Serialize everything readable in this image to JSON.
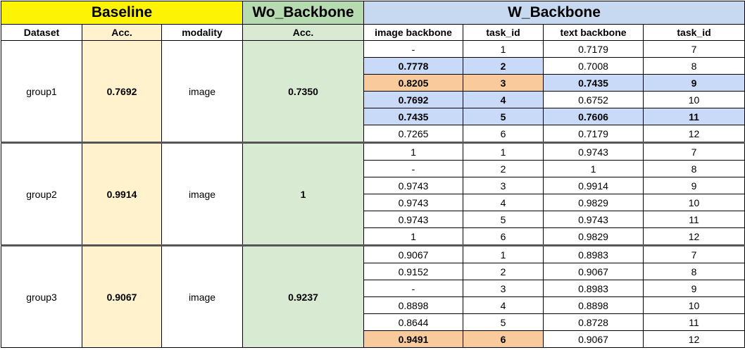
{
  "headers": {
    "baseline": "Baseline",
    "wo_backbone": "Wo_Backbone",
    "w_backbone": "W_Backbone",
    "dataset": "Dataset",
    "acc": "Acc.",
    "modality": "modality",
    "wo_acc": "Acc.",
    "image_backbone": "image backbone",
    "task_id_1": "task_id",
    "text_backbone": "text backbone",
    "task_id_2": "task_id"
  },
  "colors": {
    "baseline_header": "#fdf305",
    "wo_backbone_header": "#b7dbb0",
    "w_backbone_header": "#c6d9f1",
    "baseline_column": "#fff2cc",
    "wo_backbone_column": "#d9ead3",
    "highlight_blue": "#c9daf8",
    "highlight_orange": "#f9cb9c"
  },
  "groups": [
    {
      "dataset": "group1",
      "acc": "0.7692",
      "modality": "image",
      "wo_acc": "0.7350",
      "rows": [
        {
          "img": "-",
          "tid1": "1",
          "txt": "0.7179",
          "tid2": "7"
        },
        {
          "img": "0.7778",
          "tid1": "2",
          "txt": "0.7008",
          "tid2": "8"
        },
        {
          "img": "0.8205",
          "tid1": "3",
          "txt": "0.7435",
          "tid2": "9"
        },
        {
          "img": "0.7692",
          "tid1": "4",
          "txt": "0.6752",
          "tid2": "10"
        },
        {
          "img": "0.7435",
          "tid1": "5",
          "txt": "0.7606",
          "tid2": "11"
        },
        {
          "img": "0.7265",
          "tid1": "6",
          "txt": "0.7179",
          "tid2": "12"
        }
      ]
    },
    {
      "dataset": "group2",
      "acc": "0.9914",
      "modality": "image",
      "wo_acc": "1",
      "rows": [
        {
          "img": "1",
          "tid1": "1",
          "txt": "0.9743",
          "tid2": "7"
        },
        {
          "img": "-",
          "tid1": "2",
          "txt": "1",
          "tid2": "8"
        },
        {
          "img": "0.9743",
          "tid1": "3",
          "txt": "0.9914",
          "tid2": "9"
        },
        {
          "img": "0.9743",
          "tid1": "4",
          "txt": "0.9829",
          "tid2": "10"
        },
        {
          "img": "0.9743",
          "tid1": "5",
          "txt": "0.9743",
          "tid2": "11"
        },
        {
          "img": "1",
          "tid1": "6",
          "txt": "0.9829",
          "tid2": "12"
        }
      ]
    },
    {
      "dataset": "group3",
      "acc": "0.9067",
      "modality": "image",
      "wo_acc": "0.9237",
      "rows": [
        {
          "img": "0.9067",
          "tid1": "1",
          "txt": "0.8983",
          "tid2": "7"
        },
        {
          "img": "0.9152",
          "tid1": "2",
          "txt": "0.9067",
          "tid2": "8"
        },
        {
          "img": "-",
          "tid1": "3",
          "txt": "0.8983",
          "tid2": "9"
        },
        {
          "img": "0.8898",
          "tid1": "4",
          "txt": "0.8898",
          "tid2": "10"
        },
        {
          "img": "0.8644",
          "tid1": "5",
          "txt": "0.8728",
          "tid2": "11"
        },
        {
          "img": "0.9491",
          "tid1": "6",
          "txt": "0.9067",
          "tid2": "12"
        }
      ]
    }
  ]
}
